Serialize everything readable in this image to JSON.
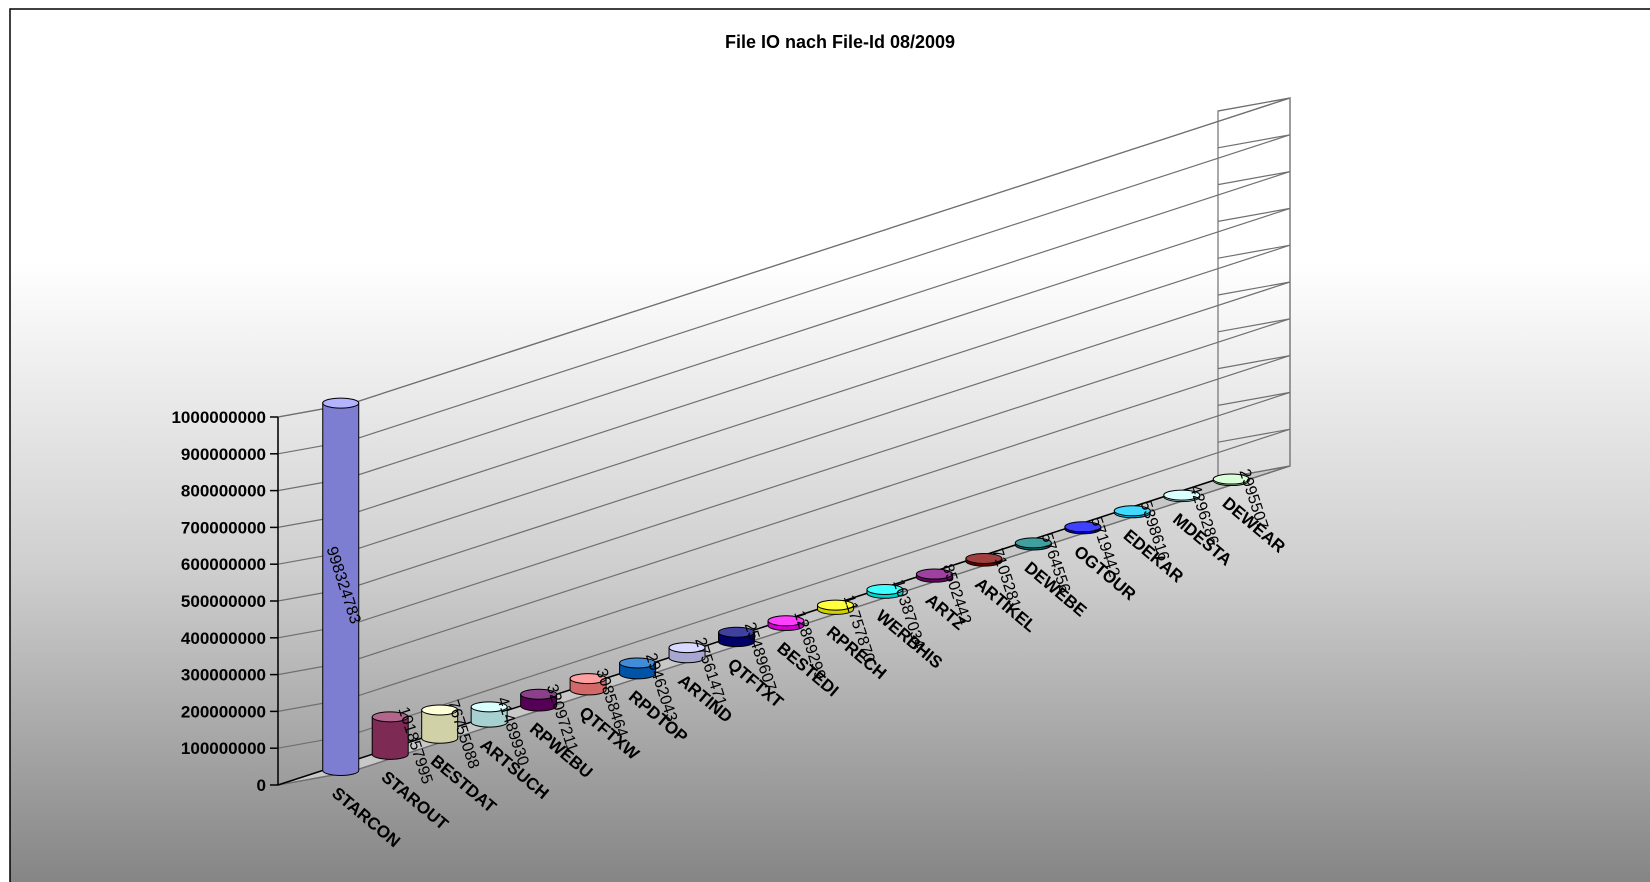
{
  "chart_data": {
    "type": "bar",
    "title": "File IO nach File-Id 08/2009",
    "xlabel": "",
    "ylabel": "",
    "ylim": [
      0,
      1000000000
    ],
    "yticks": [
      0,
      100000000,
      200000000,
      300000000,
      400000000,
      500000000,
      600000000,
      700000000,
      800000000,
      900000000,
      1000000000
    ],
    "tick_labels": [
      "0",
      "100000000",
      "200000000",
      "300000000",
      "400000000",
      "500000000",
      "600000000",
      "700000000",
      "800000000",
      "900000000",
      "1000000000"
    ],
    "grid": true,
    "legend": "none",
    "categories": [
      "STARCON",
      "STAROUT",
      "BESTDAT",
      "ARTSUCH",
      "RPWEBU",
      "QTFTXW",
      "RPDTOP",
      "ARTIND",
      "QTFTXT",
      "BESTEDI",
      "RPRECH",
      "WERBHIS",
      "ARTZ",
      "ARTIKEL",
      "DEWEBE",
      "OGTOUR",
      "EDEKAR",
      "MDESTA",
      "DEWEAR"
    ],
    "values": [
      998324783,
      101857995,
      76755088,
      41489930,
      32097211,
      30858464,
      29462043,
      27561471,
      25489607,
      12869299,
      11757870,
      10387034,
      8502442,
      7105281,
      5764556,
      5719442,
      5398616,
      4296286,
      2995507
    ],
    "data_labels": [
      "998324783",
      "101857995",
      "76755088",
      "41489930",
      "32097211",
      "30858464",
      "29462043",
      "27561471",
      "25489607",
      "12869299",
      "11757870",
      "10387034",
      "8502442",
      "7105281",
      "5764556",
      "5719442",
      "5398616",
      "4296286",
      "2995507"
    ],
    "colors": [
      "#9999ff",
      "#993366",
      "#ffffcc",
      "#ccffff",
      "#660066",
      "#ff8080",
      "#0066cc",
      "#ccccff",
      "#000080",
      "#ff00ff",
      "#ffff00",
      "#00ffff",
      "#800080",
      "#800000",
      "#008080",
      "#0000ff",
      "#00ccff",
      "#ccffff",
      "#ccffcc"
    ]
  }
}
